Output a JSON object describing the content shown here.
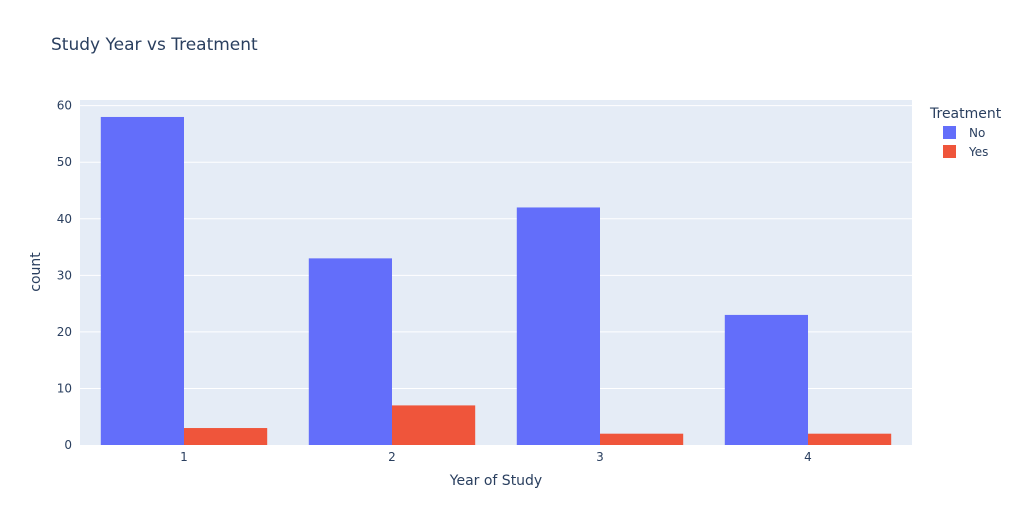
{
  "chart_data": {
    "type": "bar",
    "title": "Study Year vs Treatment",
    "xlabel": "Year of Study",
    "ylabel": "count",
    "categories": [
      "1",
      "2",
      "3",
      "4"
    ],
    "ylim": [
      0,
      61
    ],
    "yticks": [
      0,
      10,
      20,
      30,
      40,
      50,
      60
    ],
    "grid": true,
    "legend": {
      "title": "Treatment",
      "placement": "top-right"
    },
    "series": [
      {
        "name": "No",
        "color": "#636efa",
        "values": [
          58,
          33,
          42,
          23
        ]
      },
      {
        "name": "Yes",
        "color": "#ef553b",
        "values": [
          3,
          7,
          2,
          2
        ]
      }
    ]
  },
  "colors": {
    "plot_background": "#e5ecf6",
    "gridline": "#ffffff",
    "text": "#2a3f5f"
  }
}
